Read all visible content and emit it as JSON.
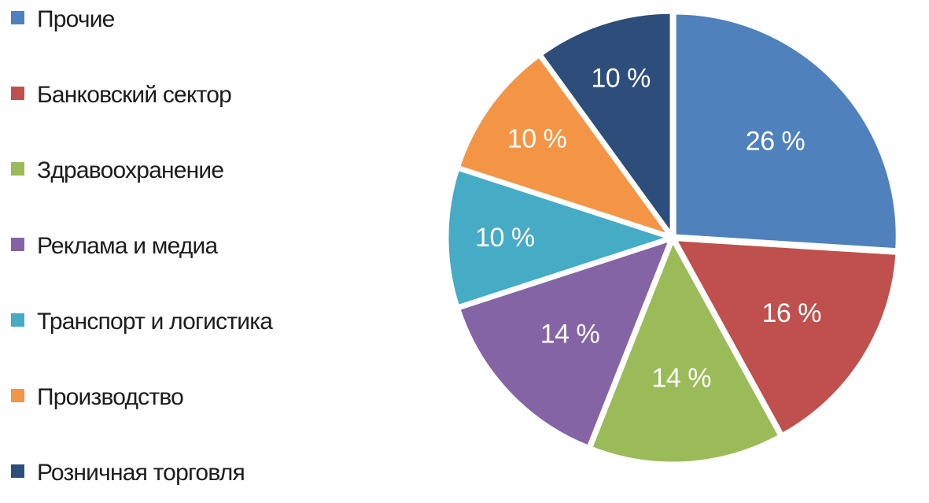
{
  "chart_data": {
    "type": "pie",
    "title": "",
    "legend_position": "left",
    "start_angle_deg": 0,
    "direction": "clockwise",
    "background": "#ffffff",
    "label_color": "#ffffff",
    "legend_text_color": "#1c1c1c",
    "slices": [
      {
        "label": "Прочие",
        "value": 26,
        "display": "26 %",
        "color": "#4f81bd"
      },
      {
        "label": "Банковский сектор",
        "value": 16,
        "display": "16 %",
        "color": "#c0504d"
      },
      {
        "label": "Здравоохранение",
        "value": 14,
        "display": "14 %",
        "color": "#9bbb59"
      },
      {
        "label": "Реклама и медиа",
        "value": 14,
        "display": "14 %",
        "color": "#8464a5"
      },
      {
        "label": "Транспорт и логистика",
        "value": 10,
        "display": "10 %",
        "color": "#46abc5"
      },
      {
        "label": "Производство",
        "value": 10,
        "display": "10 %",
        "color": "#f49546"
      },
      {
        "label": "Розничная торговля",
        "value": 10,
        "display": "10 %",
        "color": "#2d4d7b"
      }
    ]
  }
}
